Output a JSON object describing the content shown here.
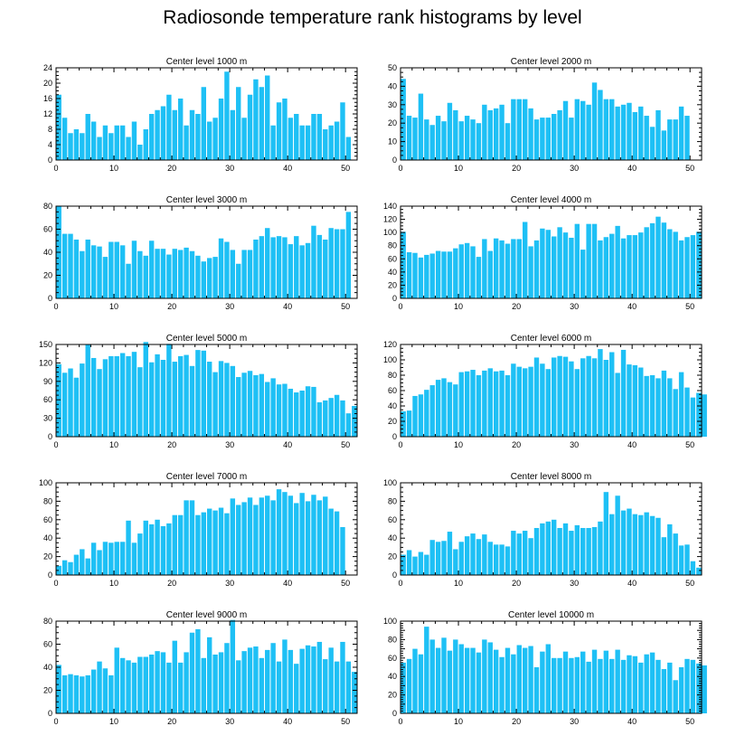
{
  "title": "Radiosonde temperature rank histograms by level",
  "colors": {
    "bar": "#1EC0F5",
    "axis": "#000000"
  },
  "chart_data": [
    {
      "type": "bar",
      "title": "Center level 1000 m",
      "xlim": [
        0,
        52
      ],
      "ylim": [
        0,
        24
      ],
      "yticks": [
        0,
        4,
        8,
        12,
        16,
        20,
        24
      ],
      "xticks": [
        0,
        10,
        20,
        30,
        40,
        50
      ],
      "values": [
        17,
        11,
        7,
        8,
        7,
        12,
        10,
        6,
        9,
        7,
        9,
        9,
        6,
        10,
        4,
        8,
        12,
        13,
        14,
        17,
        13,
        16,
        9,
        13,
        12,
        19,
        10,
        11,
        16,
        23,
        13,
        19,
        11,
        17,
        21,
        19,
        22,
        9,
        15,
        16,
        11,
        12,
        9,
        9,
        12,
        12,
        8,
        9,
        10,
        15,
        6
      ]
    },
    {
      "type": "bar",
      "title": "Center level 2000 m",
      "xlim": [
        0,
        52
      ],
      "ylim": [
        0,
        50
      ],
      "yticks": [
        0,
        10,
        20,
        30,
        40,
        50
      ],
      "xticks": [
        0,
        10,
        20,
        30,
        40,
        50
      ],
      "values": [
        44,
        24,
        23,
        36,
        22,
        19,
        24,
        21,
        31,
        27,
        21,
        24,
        22,
        20,
        30,
        27,
        28,
        30,
        20,
        33,
        33,
        33,
        28,
        22,
        23,
        23,
        25,
        27,
        32,
        23,
        33,
        32,
        30,
        42,
        38,
        33,
        33,
        29,
        30,
        31,
        26,
        29,
        24,
        18,
        27,
        16,
        22,
        22,
        29,
        24
      ]
    },
    {
      "type": "bar",
      "title": "Center level 3000 m",
      "xlim": [
        0,
        52
      ],
      "ylim": [
        0,
        80
      ],
      "yticks": [
        0,
        20,
        40,
        60,
        80
      ],
      "xticks": [
        0,
        10,
        20,
        30,
        40,
        50
      ],
      "values": [
        80,
        56,
        56,
        51,
        41,
        51,
        46,
        45,
        36,
        49,
        49,
        46,
        30,
        50,
        41,
        37,
        50,
        43,
        43,
        38,
        43,
        42,
        44,
        41,
        37,
        32,
        35,
        36,
        52,
        49,
        42,
        30,
        42,
        42,
        51,
        54,
        61,
        53,
        54,
        53,
        47,
        54,
        46,
        48,
        63,
        55,
        51,
        61,
        60,
        60,
        75
      ]
    },
    {
      "type": "bar",
      "title": "Center level 4000 m",
      "xlim": [
        0,
        52
      ],
      "ylim": [
        0,
        140
      ],
      "yticks": [
        0,
        20,
        40,
        60,
        80,
        100,
        120,
        140
      ],
      "xticks": [
        0,
        10,
        20,
        30,
        40,
        50
      ],
      "values": [
        101,
        70,
        69,
        62,
        66,
        68,
        72,
        71,
        71,
        76,
        82,
        84,
        79,
        63,
        90,
        72,
        91,
        88,
        83,
        90,
        90,
        116,
        79,
        88,
        106,
        104,
        94,
        108,
        100,
        92,
        113,
        74,
        113,
        113,
        88,
        93,
        98,
        110,
        91,
        96,
        96,
        100,
        108,
        114,
        124,
        115,
        105,
        101,
        88,
        93,
        96,
        101
      ]
    },
    {
      "type": "bar",
      "title": "Center level 5000 m",
      "xlim": [
        0,
        52
      ],
      "ylim": [
        0,
        150
      ],
      "yticks": [
        0,
        30,
        60,
        90,
        120,
        150
      ],
      "xticks": [
        0,
        10,
        20,
        30,
        40,
        50
      ],
      "values": [
        118,
        104,
        111,
        96,
        119,
        150,
        128,
        110,
        126,
        131,
        131,
        136,
        131,
        138,
        113,
        154,
        121,
        134,
        125,
        151,
        122,
        131,
        133,
        115,
        141,
        140,
        122,
        105,
        123,
        120,
        115,
        97,
        104,
        107,
        100,
        102,
        89,
        95,
        85,
        86,
        78,
        72,
        75,
        82,
        81,
        56,
        59,
        63,
        68,
        59,
        38,
        50
      ]
    },
    {
      "type": "bar",
      "title": "Center level 6000 m",
      "xlim": [
        0,
        52
      ],
      "ylim": [
        0,
        120
      ],
      "yticks": [
        0,
        20,
        40,
        60,
        80,
        100,
        120
      ],
      "xticks": [
        0,
        10,
        20,
        30,
        40,
        50
      ],
      "values": [
        33,
        34,
        53,
        55,
        61,
        67,
        74,
        76,
        71,
        68,
        84,
        85,
        87,
        80,
        86,
        89,
        85,
        86,
        80,
        95,
        91,
        89,
        91,
        103,
        95,
        88,
        103,
        105,
        104,
        98,
        88,
        102,
        105,
        102,
        114,
        100,
        110,
        83,
        113,
        94,
        93,
        90,
        79,
        80,
        76,
        86,
        76,
        62,
        84,
        64,
        51,
        57,
        55
      ]
    },
    {
      "type": "bar",
      "title": "Center level 7000 m",
      "xlim": [
        0,
        52
      ],
      "ylim": [
        0,
        100
      ],
      "yticks": [
        0,
        20,
        40,
        60,
        80,
        100
      ],
      "xticks": [
        0,
        10,
        20,
        30,
        40,
        50
      ],
      "values": [
        10,
        16,
        14,
        22,
        28,
        18,
        35,
        27,
        36,
        35,
        36,
        36,
        59,
        35,
        45,
        59,
        55,
        60,
        53,
        56,
        65,
        65,
        81,
        81,
        65,
        68,
        72,
        70,
        73,
        67,
        83,
        76,
        79,
        84,
        76,
        84,
        86,
        81,
        93,
        90,
        86,
        78,
        89,
        80,
        87,
        81,
        85,
        72,
        69,
        52
      ]
    },
    {
      "type": "bar",
      "title": "Center level 8000 m",
      "xlim": [
        0,
        52
      ],
      "ylim": [
        0,
        100
      ],
      "yticks": [
        0,
        20,
        40,
        60,
        80,
        100
      ],
      "xticks": [
        0,
        10,
        20,
        30,
        40,
        50
      ],
      "values": [
        22,
        27,
        20,
        25,
        22,
        38,
        36,
        37,
        47,
        28,
        36,
        42,
        45,
        39,
        44,
        36,
        33,
        33,
        31,
        48,
        45,
        48,
        40,
        51,
        56,
        58,
        60,
        51,
        56,
        48,
        54,
        51,
        51,
        52,
        58,
        90,
        66,
        86,
        70,
        72,
        66,
        65,
        68,
        64,
        62,
        41,
        55,
        45,
        32,
        33,
        15,
        8
      ]
    },
    {
      "type": "bar",
      "title": "Center level 9000 m",
      "xlim": [
        0,
        52
      ],
      "ylim": [
        0,
        80
      ],
      "yticks": [
        0,
        20,
        40,
        60,
        80
      ],
      "xticks": [
        0,
        10,
        20,
        30,
        40,
        50
      ],
      "values": [
        42,
        33,
        34,
        33,
        32,
        33,
        38,
        45,
        39,
        33,
        57,
        48,
        46,
        44,
        49,
        49,
        51,
        54,
        53,
        44,
        63,
        44,
        53,
        70,
        73,
        48,
        66,
        51,
        53,
        61,
        81,
        46,
        54,
        57,
        58,
        48,
        55,
        61,
        45,
        64,
        55,
        43,
        56,
        59,
        58,
        62,
        47,
        57,
        45,
        62,
        45,
        36
      ]
    },
    {
      "type": "bar",
      "title": "Center level 10000 m",
      "xlim": [
        0,
        52
      ],
      "ylim": [
        0,
        100
      ],
      "yticks": [
        0,
        10,
        20,
        30,
        40,
        50,
        60,
        70,
        80,
        90,
        100
      ],
      "ytick_labels": [
        0,
        20,
        40,
        60,
        80,
        100
      ],
      "xticks": [
        0,
        10,
        20,
        30,
        40,
        50
      ],
      "values": [
        55,
        59,
        70,
        64,
        94,
        80,
        71,
        82,
        68,
        80,
        75,
        71,
        71,
        66,
        80,
        77,
        69,
        61,
        71,
        64,
        74,
        71,
        73,
        50,
        67,
        75,
        60,
        60,
        67,
        60,
        61,
        67,
        56,
        69,
        59,
        68,
        59,
        69,
        58,
        63,
        62,
        55,
        64,
        66,
        58,
        48,
        55,
        36,
        50,
        59,
        58,
        54,
        52
      ]
    }
  ]
}
